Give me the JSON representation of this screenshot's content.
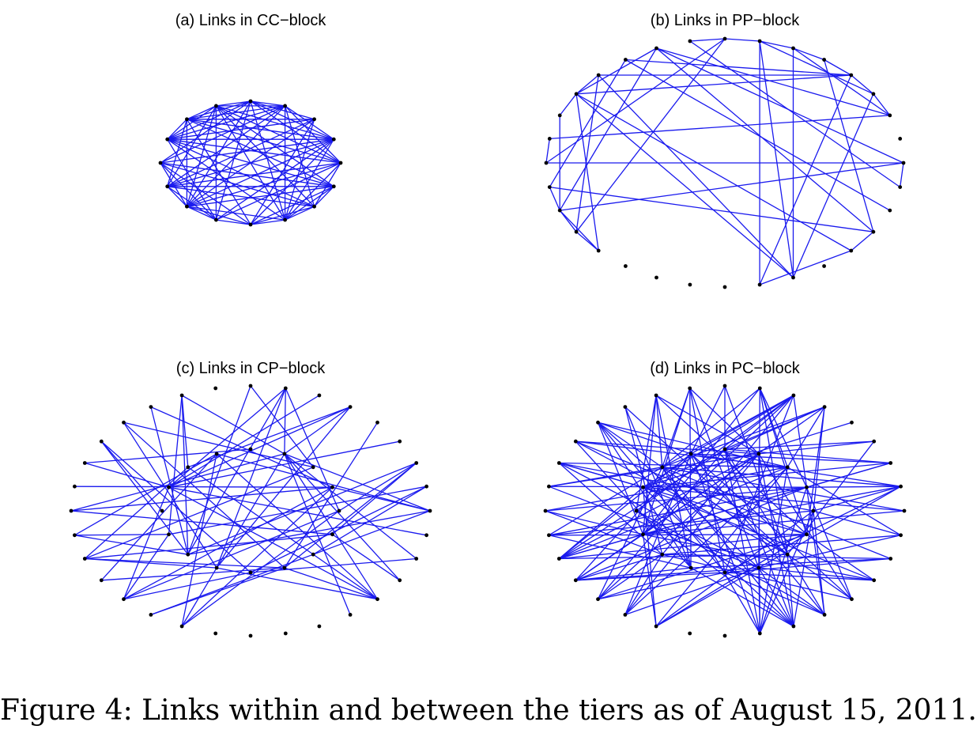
{
  "figure": {
    "caption": "Figure 4: Links within and between the tiers as of August 15, 2011.",
    "edge_color": "#1a1aee",
    "node_color": "#000000"
  },
  "panels": [
    {
      "id": "cc",
      "title": "(a) Links in CC−block",
      "node_count": 16
    },
    {
      "id": "pp",
      "title": "(b) Links in PP−block",
      "node_count": 32
    },
    {
      "id": "cp",
      "title": "(c) Links in CP−block",
      "node_count": 32
    },
    {
      "id": "pc",
      "title": "(d) Links in PC−block",
      "node_count": 32
    }
  ]
}
